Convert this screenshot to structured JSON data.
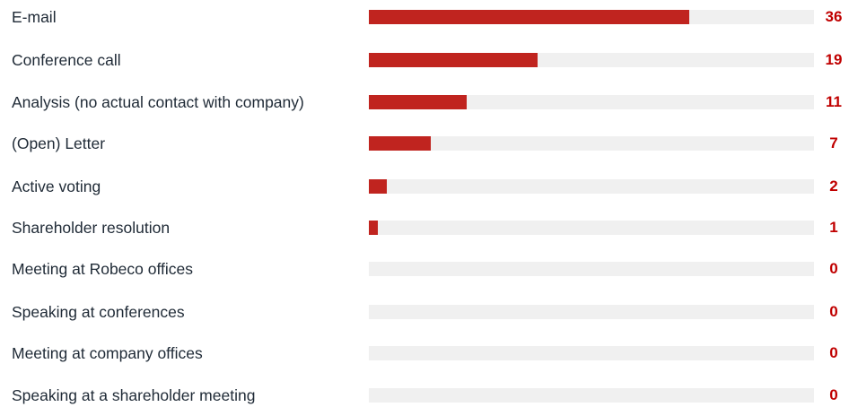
{
  "colors": {
    "bar": "#c0241f",
    "track": "#f0f0f0",
    "value_text": "#c00000",
    "label_text": "#1f2a36"
  },
  "chart_data": {
    "type": "bar",
    "orientation": "horizontal",
    "categories": [
      "E-mail",
      "Conference call",
      "Analysis (no actual contact with company)",
      "(Open) Letter",
      "Active voting",
      "Shareholder resolution",
      "Meeting at Robeco offices",
      "Speaking at conferences",
      "Meeting at company offices",
      "Speaking at a shareholder meeting"
    ],
    "values": [
      36,
      19,
      11,
      7,
      2,
      1,
      0,
      0,
      0,
      0
    ],
    "xlim": [
      0,
      50
    ],
    "grid": false,
    "legend": "none"
  }
}
